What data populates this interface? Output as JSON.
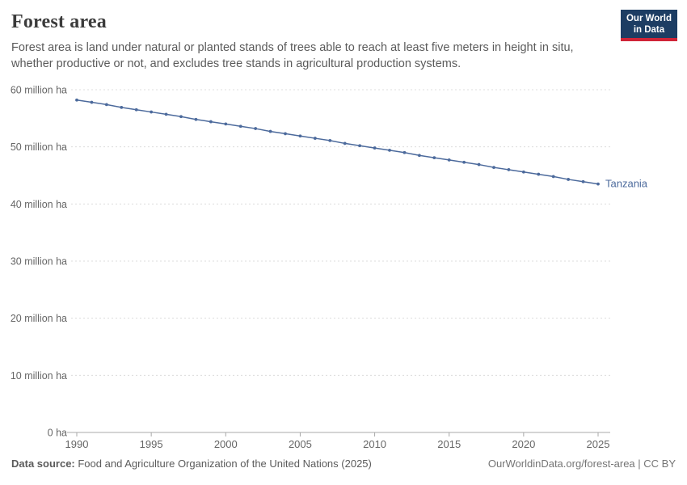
{
  "header": {
    "title": "Forest area",
    "subtitle": "Forest area is land under natural or planted stands of trees able to reach at least five meters in height in situ, whether productive or not, and excludes tree stands in agricultural production systems.",
    "logo": {
      "line1": "Our World",
      "line2": "in Data"
    }
  },
  "chart_data": {
    "type": "line",
    "title": "Forest area",
    "entity_label": "Tanzania",
    "x": [
      1990,
      1991,
      1992,
      1993,
      1994,
      1995,
      1996,
      1997,
      1998,
      1999,
      2000,
      2001,
      2002,
      2003,
      2004,
      2005,
      2006,
      2007,
      2008,
      2009,
      2010,
      2011,
      2012,
      2013,
      2014,
      2015,
      2016,
      2017,
      2018,
      2019,
      2020,
      2021,
      2022,
      2023,
      2024,
      2025
    ],
    "series": [
      {
        "name": "Tanzania",
        "unit": "million ha",
        "values": [
          58.2,
          57.8,
          57.4,
          56.9,
          56.5,
          56.1,
          55.7,
          55.3,
          54.8,
          54.4,
          54.0,
          53.6,
          53.2,
          52.7,
          52.3,
          51.9,
          51.5,
          51.1,
          50.6,
          50.2,
          49.8,
          49.4,
          49.0,
          48.5,
          48.1,
          47.7,
          47.3,
          46.9,
          46.4,
          46.0,
          45.6,
          45.2,
          44.8,
          44.3,
          43.9,
          43.5
        ]
      }
    ],
    "xticks": [
      1990,
      1995,
      2000,
      2005,
      2010,
      2015,
      2020,
      2025
    ],
    "yticks": [
      {
        "value": 0,
        "label": "0 ha"
      },
      {
        "value": 10,
        "label": "10 million ha"
      },
      {
        "value": 20,
        "label": "20 million ha"
      },
      {
        "value": 30,
        "label": "30 million ha"
      },
      {
        "value": 40,
        "label": "40 million ha"
      },
      {
        "value": 50,
        "label": "50 million ha"
      },
      {
        "value": 60,
        "label": "60 million ha"
      }
    ],
    "ylim": [
      0,
      60
    ],
    "xlim": [
      1990,
      2025
    ],
    "grid": true,
    "legend_position": "end-of-line",
    "line_color": "#4c6a9c",
    "grid_color": "#dcdcdc",
    "axis_text_color": "#666666",
    "axis_line_color": "#a8a8a8"
  },
  "footer": {
    "source_label": "Data source:",
    "source_text": " Food and Agriculture Organization of the United Nations (2025)",
    "right_text": "OurWorldinData.org/forest-area | CC BY"
  }
}
